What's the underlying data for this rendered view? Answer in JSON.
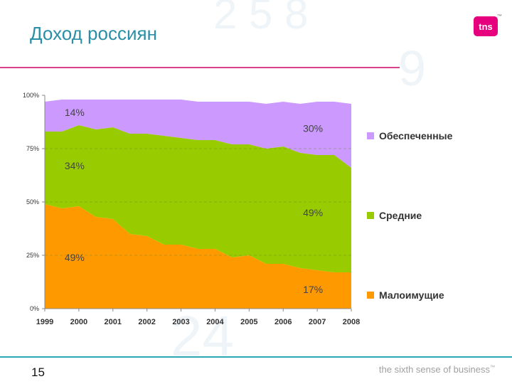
{
  "slide": {
    "title": "Доход россиян",
    "page_number": "15",
    "tagline": "the sixth sense of business",
    "tagline_mark": "™",
    "logo_text": "tns",
    "logo_mark": "™"
  },
  "colors": {
    "title": "#2a8fa6",
    "accent_pink": "#d9418c",
    "accent_teal": "#2aa8b8",
    "logo": "#e6007e"
  },
  "chart_data": {
    "type": "area",
    "stacked": true,
    "x": [
      1999,
      1999.5,
      2000,
      2000.5,
      2001,
      2001.5,
      2002,
      2002.5,
      2003,
      2003.5,
      2004,
      2004.5,
      2005,
      2005.5,
      2006,
      2006.5,
      2007,
      2007.5,
      2008
    ],
    "tick_labels_x": [
      "1999",
      "2000",
      "2001",
      "2002",
      "2003",
      "2004",
      "2005",
      "2006",
      "2007",
      "2008"
    ],
    "tick_labels_y": [
      "0%",
      "25%",
      "50%",
      "75%",
      "100%"
    ],
    "ylim": [
      0,
      100
    ],
    "grid": "dashed horizontal at 25%, 50%, 75%",
    "legend_position": "right",
    "series": [
      {
        "name": "Малоимущие",
        "color": "#ff9900",
        "values": [
          49,
          47,
          48,
          43,
          42,
          35,
          34,
          30,
          30,
          28,
          28,
          24,
          25,
          21,
          21,
          19,
          18,
          17,
          17
        ]
      },
      {
        "name": "Средние",
        "color": "#99cc00",
        "values": [
          34,
          36,
          38,
          41,
          43,
          47,
          48,
          51,
          50,
          51,
          51,
          53,
          52,
          54,
          55,
          54,
          54,
          55,
          49
        ]
      },
      {
        "name": "Обеспеченные",
        "color": "#cc99ff",
        "values": [
          14,
          15,
          12,
          14,
          13,
          16,
          16,
          17,
          18,
          18,
          18,
          20,
          20,
          21,
          21,
          23,
          25,
          25,
          30
        ]
      }
    ],
    "annotations": [
      {
        "text": "14%",
        "series": "Обеспеченные",
        "x": 2000
      },
      {
        "text": "34%",
        "series": "Средние",
        "x": 2000
      },
      {
        "text": "49%",
        "series": "Малоимущие",
        "x": 2000
      },
      {
        "text": "30%",
        "series": "Обеспеченные",
        "x": 2007
      },
      {
        "text": "49%",
        "series": "Средние",
        "x": 2007
      },
      {
        "text": "17%",
        "series": "Малоимущие",
        "x": 2007
      }
    ]
  }
}
